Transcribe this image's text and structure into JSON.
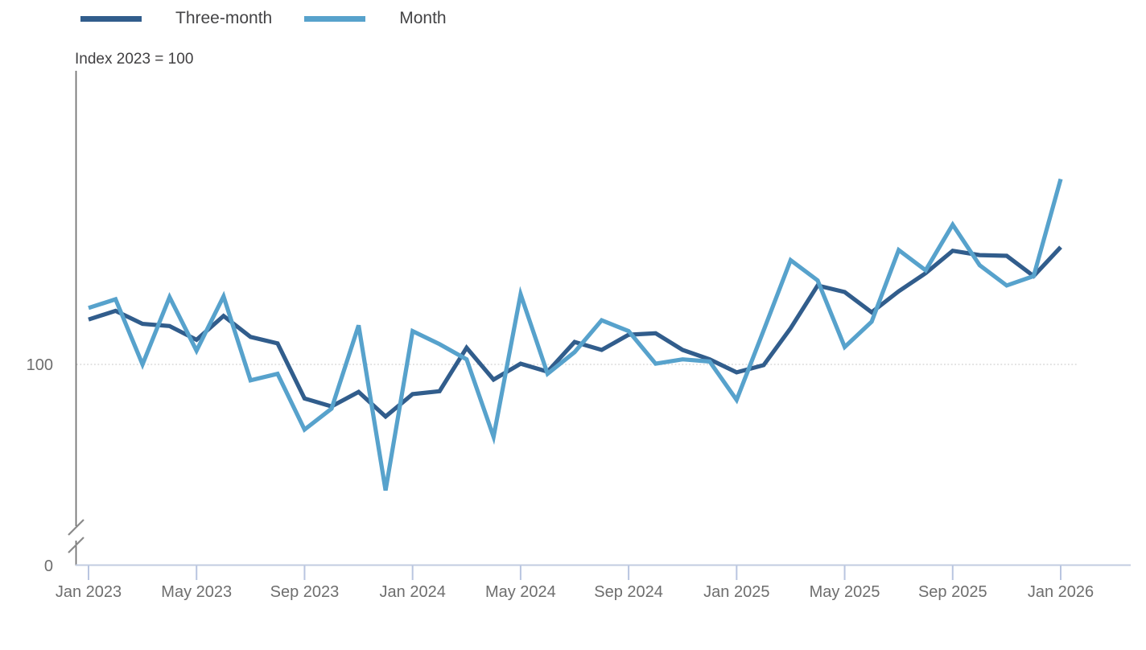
{
  "subtitle": "Index 2023 = 100",
  "legend": {
    "items": [
      {
        "label": "Three-month",
        "color": "#315d8c"
      },
      {
        "label": "Month",
        "color": "#57a2cc"
      }
    ]
  },
  "y_axis": {
    "tick_labels": [
      "100",
      "0"
    ],
    "has_break": true,
    "reference_value": 100
  },
  "x_axis": {
    "tick_labels": [
      "Jan 2023",
      "May 2023",
      "Sep 2023",
      "Jan 2024",
      "May 2024",
      "Sep 2024",
      "Jan 2025",
      "May 2025",
      "Sep 2025",
      "Jan 2026"
    ]
  },
  "chart_data": {
    "type": "line",
    "subtitle": "Index 2023 = 100",
    "x": [
      "Jan 2023",
      "Feb 2023",
      "Mar 2023",
      "Apr 2023",
      "May 2023",
      "Jun 2023",
      "Jul 2023",
      "Aug 2023",
      "Sep 2023",
      "Oct 2023",
      "Nov 2023",
      "Dec 2023",
      "Jan 2024",
      "Feb 2024",
      "Mar 2024",
      "Apr 2024",
      "May 2024",
      "Jun 2024",
      "Jul 2024",
      "Aug 2024",
      "Sep 2024",
      "Oct 2024",
      "Nov 2024",
      "Dec 2024",
      "Jan 2025",
      "Feb 2025",
      "Mar 2025",
      "Apr 2025",
      "May 2025",
      "Jun 2025",
      "Jul 2025",
      "Aug 2025",
      "Sep 2025",
      "Oct 2025",
      "Nov 2025",
      "Dec 2025",
      "Jan 2026"
    ],
    "series": [
      {
        "name": "Three-month",
        "color": "#315d8c",
        "values": [
          106.2,
          107.4,
          105.6,
          105.3,
          103.4,
          106.7,
          103.8,
          102.9,
          95.3,
          94.2,
          96.2,
          92.8,
          95.9,
          96.3,
          102.3,
          97.9,
          100.1,
          99.0,
          103.1,
          102.0,
          104.1,
          104.3,
          102.0,
          100.7,
          98.9,
          99.9,
          105.0,
          110.9,
          110.0,
          107.2,
          110.1,
          112.6,
          115.7,
          115.1,
          115.0,
          112.2,
          116.2
        ]
      },
      {
        "name": "Month",
        "color": "#57a2cc",
        "values": [
          107.8,
          109.0,
          100.0,
          109.3,
          101.9,
          109.4,
          97.8,
          98.7,
          91.0,
          93.9,
          105.4,
          82.6,
          104.6,
          102.8,
          100.7,
          90.0,
          109.7,
          98.7,
          101.7,
          106.1,
          104.6,
          100.1,
          100.7,
          100.4,
          95.1,
          104.7,
          114.4,
          111.6,
          102.4,
          105.9,
          115.8,
          113.0,
          119.3,
          113.7,
          110.9,
          112.2,
          125.6
        ]
      }
    ],
    "y_reference_line": 100,
    "ylim_display": [
      75,
      140
    ],
    "axis_break_to_zero": true,
    "grid": "single horizontal gridline at 100",
    "legend_position": "top-left"
  }
}
